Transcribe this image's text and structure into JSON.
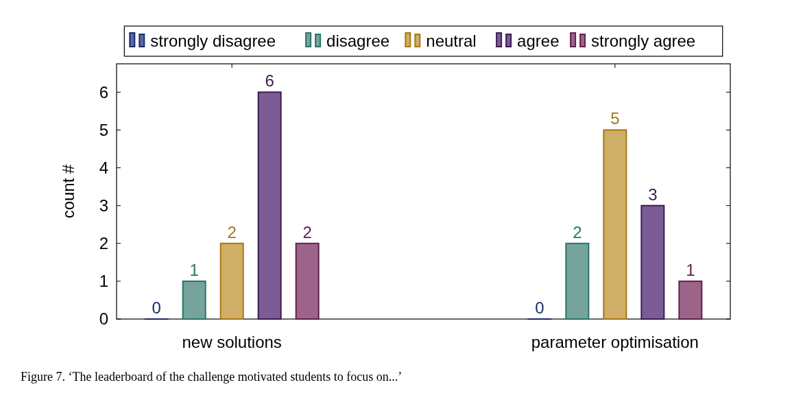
{
  "chart_data": {
    "type": "bar",
    "ylabel": "count #",
    "categories": [
      "new solutions",
      "parameter optimisation"
    ],
    "series": [
      {
        "name": "strongly disagree",
        "color": "#5a6aa8",
        "values": [
          0,
          0
        ]
      },
      {
        "name": "disagree",
        "color": "#76a49c",
        "values": [
          1,
          2
        ]
      },
      {
        "name": "neutral",
        "color": "#cfae68",
        "values": [
          2,
          5
        ]
      },
      {
        "name": "agree",
        "color": "#7c5c94",
        "values": [
          6,
          3
        ]
      },
      {
        "name": "strongly agree",
        "color": "#9c6488",
        "values": [
          2,
          1
        ]
      }
    ],
    "ylim": [
      0,
      6.75
    ],
    "yticks": [
      0,
      1,
      2,
      3,
      4,
      5,
      6
    ],
    "grid": false,
    "legend": "top",
    "data_labels": true,
    "annotations": [
      "Figure 7. ‘The leaderboard of the challenge motivated students to focus on...’"
    ]
  }
}
